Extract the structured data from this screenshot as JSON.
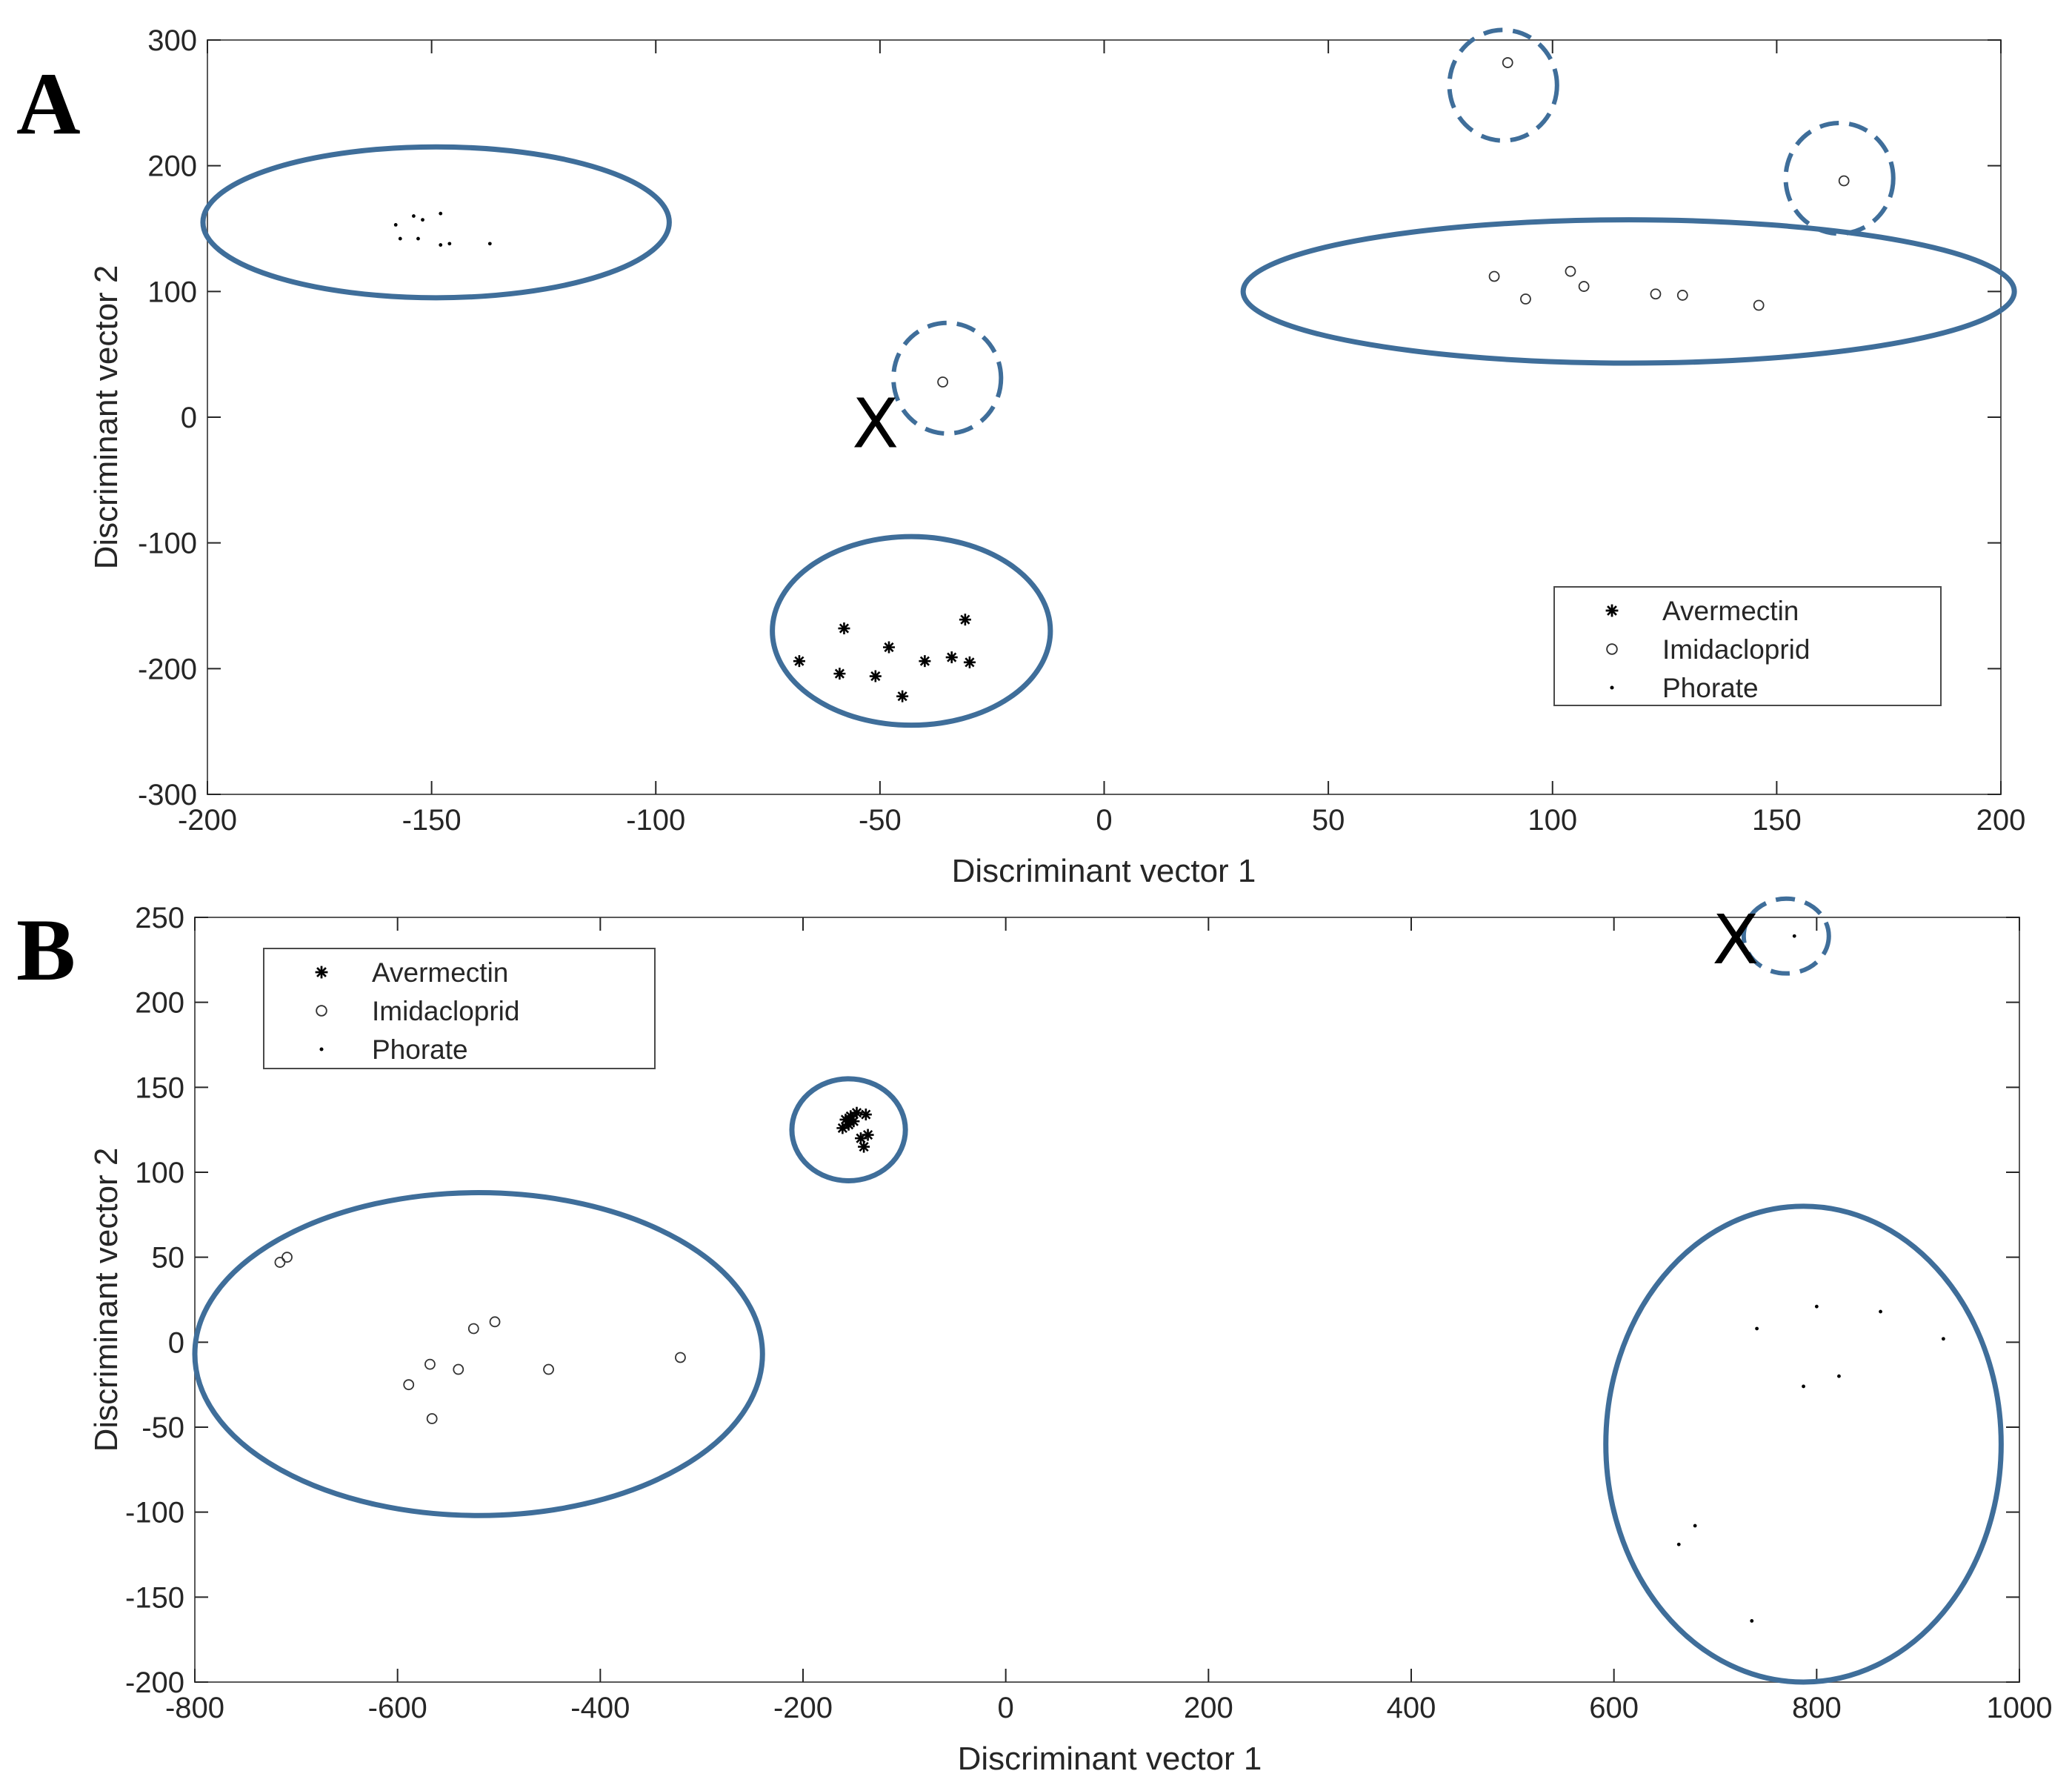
{
  "colors": {
    "ellipse": "#3F6E9A",
    "axis": "#262626",
    "marker": "#000000"
  },
  "legend_icons": {
    "Avermectin": "asterisk-marker",
    "Imidacloprid": "circle-marker",
    "Phorate": "dot-marker"
  },
  "chart_data": [
    {
      "type": "scatter",
      "panel": "A",
      "xlabel": "Discriminant vector 1",
      "ylabel": "Discriminant vector 2",
      "xlim": [
        -200,
        200
      ],
      "ylim": [
        -300,
        300
      ],
      "xticks": [
        -200,
        -150,
        -100,
        -50,
        0,
        50,
        100,
        150,
        200
      ],
      "yticks": [
        300,
        200,
        100,
        0,
        -100,
        -200,
        -300
      ],
      "legend_position": "bottom-right",
      "series": [
        {
          "name": "Avermectin",
          "marker": "asterisk",
          "x": [
            -68,
            -58,
            -59,
            -51,
            -48,
            -45,
            -40,
            -34,
            -31,
            -30
          ],
          "y": [
            -194,
            -168,
            -204,
            -206,
            -183,
            -222,
            -194,
            -191,
            -161,
            -195
          ]
        },
        {
          "name": "Imidacloprid",
          "marker": "circle",
          "x": [
            -36,
            90,
            165,
            87,
            94,
            104,
            107,
            123,
            129,
            146
          ],
          "y": [
            28,
            282,
            188,
            112,
            94,
            116,
            104,
            98,
            97,
            89
          ]
        },
        {
          "name": "Phorate",
          "marker": "dot",
          "x": [
            -158,
            -157,
            -154,
            -153,
            -152,
            -148,
            -148,
            -146,
            -137
          ],
          "y": [
            153,
            142,
            160,
            142,
            157,
            162,
            137,
            138,
            138
          ]
        }
      ],
      "annotations": [
        {
          "text": "X",
          "x": -51,
          "y": -5
        }
      ],
      "ellipses": [
        {
          "cx": -149,
          "cy": 155,
          "rx": 52,
          "ry": 60,
          "rot": 0,
          "dashed": false
        },
        {
          "cx": -43,
          "cy": -170,
          "rx": 31,
          "ry": 75,
          "rot": 0,
          "dashed": false
        },
        {
          "cx": 117,
          "cy": 100,
          "rx": 86,
          "ry": 57,
          "rot": 0,
          "dashed": false
        },
        {
          "cx": -35,
          "cy": 31,
          "rx": 12,
          "ry": 44,
          "rot": 0,
          "dashed": true
        },
        {
          "cx": 89,
          "cy": 264,
          "rx": 12,
          "ry": 44,
          "rot": 0,
          "dashed": true
        },
        {
          "cx": 164,
          "cy": 190,
          "rx": 12,
          "ry": 44,
          "rot": 0,
          "dashed": true
        }
      ]
    },
    {
      "type": "scatter",
      "panel": "B",
      "xlabel": "Discriminant vector 1",
      "ylabel": "Discriminant vector 2",
      "xlim": [
        -800,
        1000
      ],
      "ylim": [
        -200,
        250
      ],
      "xticks": [
        -800,
        -600,
        -400,
        -200,
        0,
        200,
        400,
        600,
        800,
        1000
      ],
      "yticks": [
        250,
        200,
        150,
        100,
        50,
        0,
        -50,
        -100,
        -150,
        -200
      ],
      "legend_position": "top-left",
      "series": [
        {
          "name": "Avermectin",
          "marker": "asterisk",
          "x": [
            -161,
            -158,
            -155,
            -153,
            -150,
            -147,
            -143,
            -140,
            -138,
            -136
          ],
          "y": [
            126,
            131,
            128,
            133,
            130,
            135,
            120,
            115,
            134,
            122
          ]
        },
        {
          "name": "Imidacloprid",
          "marker": "circle",
          "x": [
            -716,
            -709,
            -589,
            -568,
            -540,
            -525,
            -504,
            -451,
            -321,
            -566
          ],
          "y": [
            47,
            50,
            -25,
            -13,
            -16,
            8,
            12,
            -16,
            -9,
            -45
          ]
        },
        {
          "name": "Phorate",
          "marker": "dot",
          "x": [
            778,
            741,
            800,
            863,
            925,
            787,
            822,
            680,
            664,
            736
          ],
          "y": [
            239,
            8,
            21,
            18,
            2,
            -26,
            -20,
            -108,
            -119,
            -164
          ]
        }
      ],
      "annotations": [
        {
          "text": "X",
          "x": 720,
          "y": 237
        }
      ],
      "ellipses": [
        {
          "cx": -155,
          "cy": 125,
          "rx": 56,
          "ry": 30,
          "rot": 0,
          "dashed": false
        },
        {
          "cx": -520,
          "cy": -7,
          "rx": 280,
          "ry": 95,
          "rot": 0,
          "dashed": false
        },
        {
          "cx": 787,
          "cy": -60,
          "rx": 195,
          "ry": 140,
          "rot": 0,
          "dashed": false
        },
        {
          "cx": 770,
          "cy": 239,
          "rx": 42,
          "ry": 22,
          "rot": 0,
          "dashed": true
        }
      ]
    }
  ]
}
